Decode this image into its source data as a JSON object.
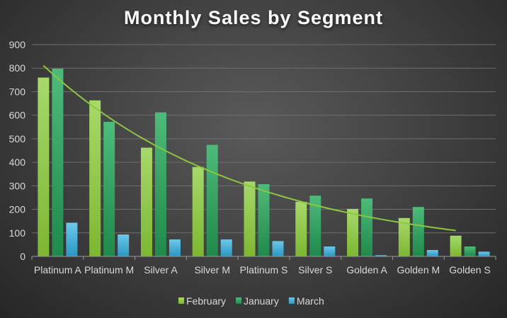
{
  "chart_data": {
    "type": "bar",
    "title": "Monthly Sales by Segment",
    "xlabel": "",
    "ylabel": "",
    "ylim": [
      0,
      900
    ],
    "yticks": [
      0,
      100,
      200,
      300,
      400,
      500,
      600,
      700,
      800,
      900
    ],
    "categories": [
      "Platinum A",
      "Platinum M",
      "Silver A",
      "Silver M",
      "Platinum S",
      "Silver S",
      "Golden A",
      "Golden M",
      "Golden S"
    ],
    "series": [
      {
        "name": "February",
        "color": "#8dc63f",
        "values": [
          760,
          663,
          462,
          380,
          318,
          232,
          202,
          163,
          88
        ]
      },
      {
        "name": "January",
        "color": "#2e9e5b",
        "values": [
          798,
          572,
          612,
          474,
          307,
          258,
          246,
          210,
          42
        ]
      },
      {
        "name": "March",
        "color": "#3fb0d8",
        "values": [
          143,
          93,
          72,
          72,
          65,
          42,
          5,
          27,
          20
        ]
      }
    ],
    "trendline": {
      "series": "February",
      "type": "exponential",
      "color": "#8dc63f"
    },
    "legend": "bottom",
    "grid": true
  }
}
